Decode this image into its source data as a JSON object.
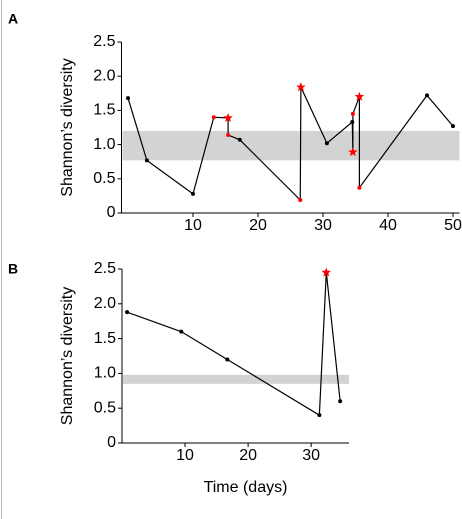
{
  "chart_data": [
    {
      "type": "line",
      "label": "A",
      "ylabel": "Shannon’s diversity",
      "x": [
        0,
        2.9,
        10,
        13.2,
        15.4,
        15.4,
        17.2,
        26.5,
        26.6,
        30.6,
        34.5,
        34.6,
        34.6,
        35.6,
        35.6,
        46,
        50
      ],
      "values": [
        1.68,
        0.77,
        0.28,
        1.4,
        1.39,
        1.14,
        1.07,
        0.19,
        1.84,
        1.02,
        1.33,
        0.89,
        1.45,
        1.7,
        0.37,
        1.72,
        1.27
      ],
      "line_color": "#000000",
      "point_colors": [
        "#000000",
        "#000000",
        "#000000",
        "#ff0000",
        "#ff0000",
        "#ff0000",
        "#000000",
        "#ff0000",
        "#ff0000",
        "#000000",
        "#000000",
        "#ff0000",
        "#ff0000",
        "#ff0000",
        "#ff0000",
        "#000000",
        "#000000"
      ],
      "point_markers": [
        "circle",
        "circle",
        "circle",
        "circle",
        "star",
        "circle",
        "circle",
        "circle",
        "star",
        "circle",
        "circle",
        "star",
        "circle",
        "star",
        "circle",
        "circle",
        "circle"
      ],
      "band": [
        0.77,
        1.2
      ],
      "band_color": "#d3d3d3",
      "xlim": [
        -1,
        51
      ],
      "xticks": [
        10,
        20,
        30,
        40,
        50
      ],
      "ylim": [
        0,
        2.5
      ],
      "yticks": [
        0,
        0.5,
        {
          "value": 1,
          "label": "1.0"
        },
        1.5,
        {
          "value": 2,
          "label": "2.0"
        },
        2.5
      ]
    },
    {
      "type": "line",
      "label": "B",
      "ylabel": "Shannon’s diversity",
      "xlabel": "Time (days)",
      "x": [
        0.8,
        9.4,
        16.7,
        31.3,
        32.4,
        34.6
      ],
      "values": [
        1.88,
        1.6,
        1.2,
        0.4,
        2.45,
        0.6
      ],
      "line_color": "#000000",
      "point_colors": [
        "#000000",
        "#000000",
        "#000000",
        "#000000",
        "#ff0000",
        "#000000"
      ],
      "point_markers": [
        "circle",
        "circle",
        "circle",
        "circle",
        "star",
        "circle"
      ],
      "band": [
        0.85,
        0.98
      ],
      "band_color": "#d3d3d3",
      "xlim": [
        0,
        36
      ],
      "xticks": [
        10,
        20,
        30
      ],
      "ylim": [
        0,
        2.5
      ],
      "yticks": [
        0,
        0.5,
        {
          "value": 1,
          "label": "1.0"
        },
        1.5,
        {
          "value": 2,
          "label": "2.0"
        },
        2.5
      ]
    }
  ]
}
